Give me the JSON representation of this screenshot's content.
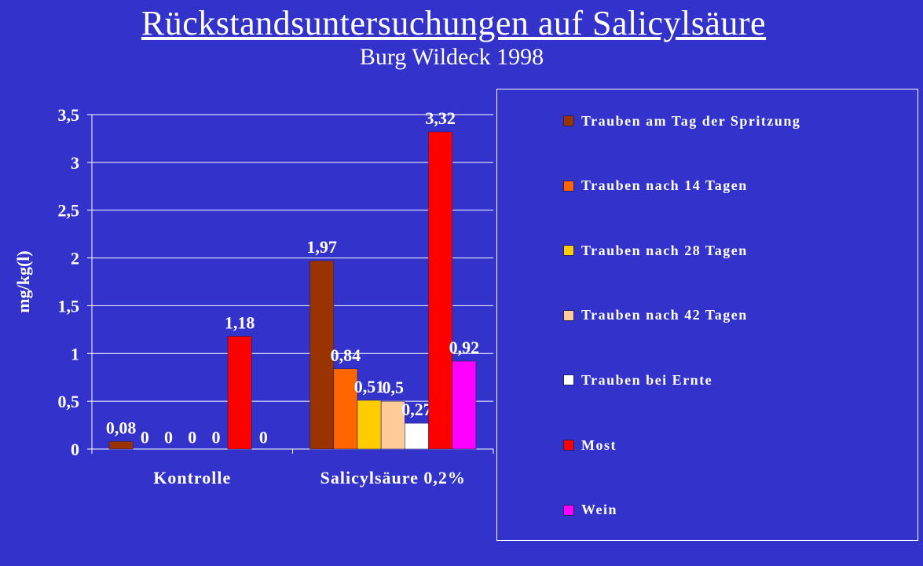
{
  "title": "Rückstandsuntersuchungen auf Salicylsäure",
  "subtitle": "Burg Wildeck 1998",
  "chart_data": {
    "type": "bar",
    "ylabel": "mg/kg(l)",
    "ylim": [
      0,
      3.5
    ],
    "yticks": [
      {
        "value": 0,
        "label": "0"
      },
      {
        "value": 0.5,
        "label": "0,5"
      },
      {
        "value": 1,
        "label": "1"
      },
      {
        "value": 1.5,
        "label": "1,5"
      },
      {
        "value": 2,
        "label": "2"
      },
      {
        "value": 2.5,
        "label": "2,5"
      },
      {
        "value": 3,
        "label": "3"
      },
      {
        "value": 3.5,
        "label": "3,5"
      }
    ],
    "grid": "horizontal",
    "legend_position": "right",
    "categories": [
      "Kontrolle",
      "Salicylsäure 0,2%"
    ],
    "series": [
      {
        "name": "Trauben am Tag der Spritzung",
        "color": "#993300",
        "values": [
          0.08,
          1.97
        ],
        "labels": [
          "0,08",
          "1,97"
        ]
      },
      {
        "name": "Trauben nach 14 Tagen",
        "color": "#ff6600",
        "values": [
          0,
          0.84
        ],
        "labels": [
          "0",
          "0,84"
        ]
      },
      {
        "name": "Trauben nach 28 Tagen",
        "color": "#ffcc00",
        "values": [
          0,
          0.51
        ],
        "labels": [
          "0",
          "0,51"
        ]
      },
      {
        "name": "Trauben nach 42 Tagen",
        "color": "#ffcc99",
        "values": [
          0,
          0.5
        ],
        "labels": [
          "0",
          "0,5"
        ]
      },
      {
        "name": "Trauben bei Ernte",
        "color": "#ffffff",
        "values": [
          0,
          0.27
        ],
        "labels": [
          "0",
          "0,27"
        ]
      },
      {
        "name": "Most",
        "color": "#ff0000",
        "values": [
          1.18,
          3.32
        ],
        "labels": [
          "1,18",
          "3,32"
        ]
      },
      {
        "name": "Wein",
        "color": "#ff00ff",
        "values": [
          null,
          0.92
        ],
        "labels": [
          "0",
          "0,92"
        ]
      }
    ]
  }
}
